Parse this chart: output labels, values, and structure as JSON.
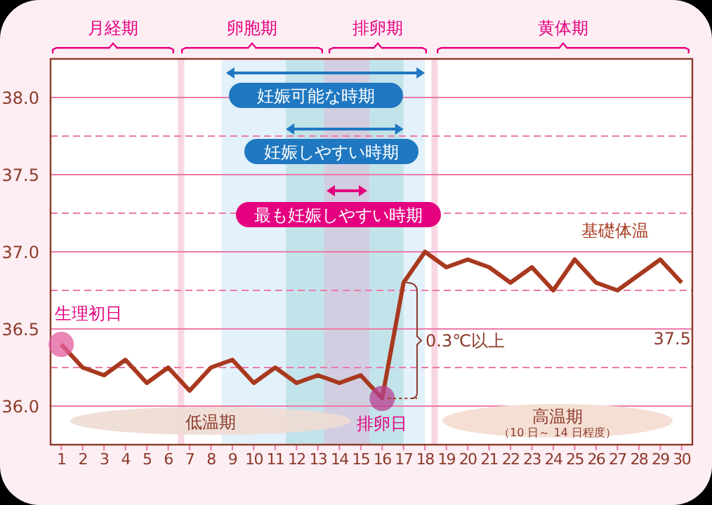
{
  "chart_data": {
    "type": "line",
    "x": [
      1,
      2,
      3,
      4,
      5,
      6,
      7,
      8,
      9,
      10,
      11,
      12,
      13,
      14,
      15,
      16,
      17,
      18,
      19,
      20,
      21,
      22,
      23,
      24,
      25,
      26,
      27,
      28,
      29,
      30
    ],
    "series": [
      {
        "name": "基礎体温",
        "color": "#a8391f",
        "values": [
          36.4,
          36.25,
          36.2,
          36.3,
          36.15,
          36.25,
          36.1,
          36.25,
          36.3,
          36.15,
          36.25,
          36.15,
          36.2,
          36.15,
          36.2,
          36.05,
          36.8,
          37.0,
          36.9,
          36.95,
          36.9,
          36.8,
          36.9,
          36.75,
          36.95,
          36.8,
          36.75,
          36.85,
          36.95,
          36.8
        ]
      }
    ],
    "xlim": [
      0.5,
      30.5
    ],
    "xticks": [
      1,
      2,
      3,
      4,
      5,
      6,
      7,
      8,
      9,
      10,
      11,
      12,
      13,
      14,
      15,
      16,
      17,
      18,
      19,
      20,
      21,
      22,
      23,
      24,
      25,
      26,
      27,
      28,
      29,
      30
    ],
    "ylim": [
      35.75,
      38.25
    ],
    "yticks": [
      {
        "value": 36,
        "label": "36.0"
      },
      36.5,
      {
        "value": 37,
        "label": "37.0"
      },
      37.5,
      {
        "value": 38,
        "label": "38.0"
      }
    ],
    "grid": "y",
    "marker": "none",
    "line_style": "solid",
    "bands": [
      {
        "axis": "x",
        "from": 8.5,
        "to": 18,
        "color": "#e3f1fa"
      },
      {
        "axis": "x",
        "from": 11.5,
        "to": 17,
        "color": "#c3e3ea"
      },
      {
        "axis": "x",
        "from": 13.3,
        "to": 15.4,
        "color": "#d2cde0"
      },
      {
        "axis": "x",
        "from": 6.45,
        "to": 6.75,
        "color": "#f9d6e3"
      },
      {
        "axis": "x",
        "from": 18.3,
        "to": 18.6,
        "color": "#f9d6e3"
      }
    ],
    "ref_lines": [
      {
        "axis": "y",
        "value": 36.25,
        "line_style": "dashed",
        "color": "#ec7aa8"
      },
      {
        "axis": "y",
        "value": 36.75,
        "line_style": "dashed",
        "color": "#ec7aa8"
      },
      {
        "axis": "y",
        "value": 37.25,
        "line_style": "dashed",
        "color": "#ec7aa8"
      },
      {
        "axis": "y",
        "value": 37.75,
        "line_style": "dashed",
        "color": "#ec7aa8"
      }
    ],
    "annotations": [
      "月経期",
      "卵胞期",
      "排卵期",
      "黄体期",
      "妊娠可能な時期",
      "妊娠しやすい時期",
      "最も妊娠しやすい時期",
      {
        "text": "生理初日",
        "x": 1,
        "y": 36.4
      },
      {
        "text": "排卵日",
        "x": 16,
        "y": 36.05
      },
      "0.3℃以上",
      "低温期",
      "高温期",
      "（10 日～ 14 日程度）",
      "37.5"
    ]
  }
}
